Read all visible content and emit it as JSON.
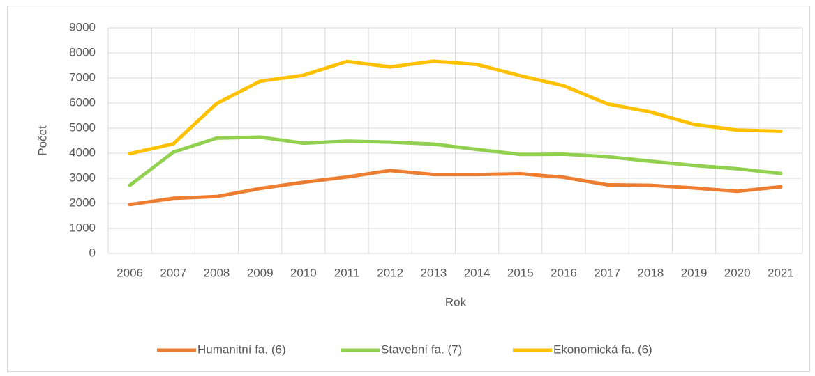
{
  "chart_data": {
    "type": "line",
    "x_label": "Rok",
    "y_label": "Počet",
    "categories": [
      "2006",
      "2007",
      "2008",
      "2009",
      "2010",
      "2011",
      "2012",
      "2013",
      "2014",
      "2015",
      "2016",
      "2017",
      "2018",
      "2019",
      "2020",
      "2021"
    ],
    "series": [
      {
        "name": "Humanitní fa. (6)",
        "color": "#ED7D31",
        "values": [
          1950,
          2200,
          2270,
          2590,
          2840,
          3050,
          3310,
          3150,
          3150,
          3180,
          3040,
          2740,
          2720,
          2610,
          2480,
          2660
        ]
      },
      {
        "name": "Stavební fa. (7)",
        "color": "#92D050",
        "values": [
          2720,
          4040,
          4600,
          4640,
          4400,
          4480,
          4440,
          4360,
          4150,
          3950,
          3960,
          3860,
          3680,
          3510,
          3380,
          3190
        ]
      },
      {
        "name": "Ekonomická fa. (6)",
        "color": "#FFC000",
        "values": [
          3980,
          4370,
          5980,
          6870,
          7110,
          7660,
          7440,
          7670,
          7540,
          7090,
          6690,
          5970,
          5640,
          5150,
          4920,
          4880
        ]
      }
    ],
    "ylim": [
      0,
      9000
    ],
    "yticks": [
      0,
      1000,
      2000,
      3000,
      4000,
      5000,
      6000,
      7000,
      8000,
      9000
    ],
    "grid": true,
    "legend": "bottom"
  }
}
